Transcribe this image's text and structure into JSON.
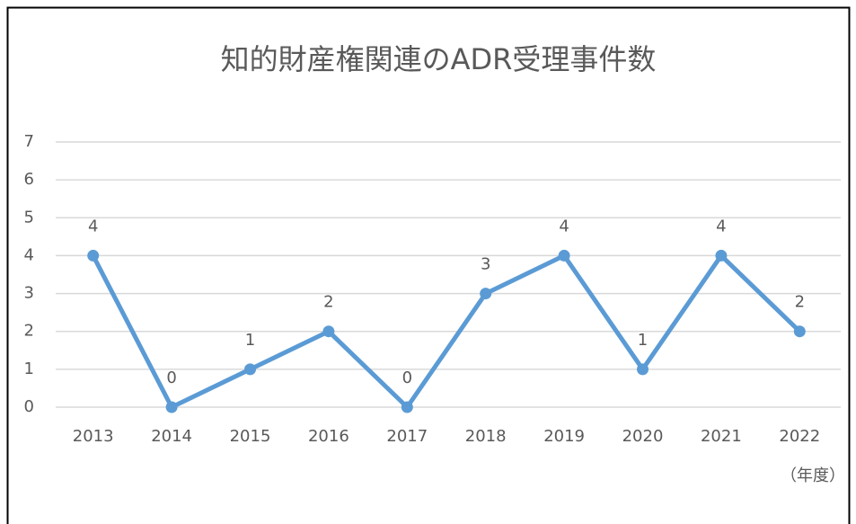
{
  "chart_data": {
    "type": "line",
    "title": "知的財産権関連のADR受理事件数",
    "categories": [
      "2013",
      "2014",
      "2015",
      "2016",
      "2017",
      "2018",
      "2019",
      "2020",
      "2021",
      "2022"
    ],
    "series": [
      {
        "name": "ADR受理事件数",
        "color": "#5b9bd5",
        "values": [
          4,
          0,
          1,
          2,
          0,
          3,
          4,
          1,
          4,
          2
        ]
      }
    ],
    "x_label": "（年度）",
    "ylim": [
      0,
      7
    ],
    "yticks": [
      0,
      1,
      2,
      3,
      4,
      5,
      6,
      7
    ],
    "grid": true
  }
}
